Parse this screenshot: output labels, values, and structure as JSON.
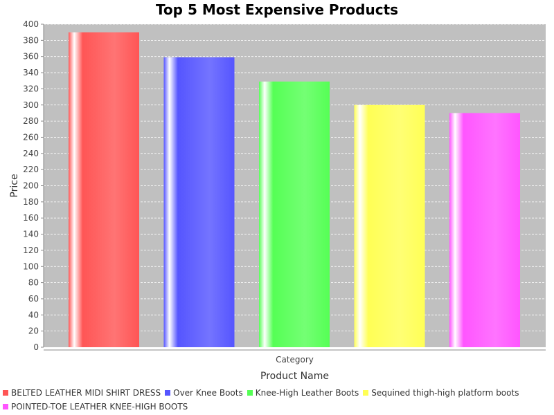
{
  "chart_data": {
    "type": "bar",
    "title": "Top 5 Most Expensive Products",
    "xlabel": "Product Name",
    "ylabel": "Price",
    "categories": [
      "Category"
    ],
    "ylim": [
      0,
      400
    ],
    "ytick_step": 20,
    "grid": true,
    "legend_position": "bottom",
    "background": "#c0c0c0",
    "series": [
      {
        "name": "BELTED LEATHER MIDI SHIRT DRESS",
        "values": [
          390
        ],
        "color": "#ff5555"
      },
      {
        "name": "Over Knee Boots",
        "values": [
          359
        ],
        "color": "#5555ff"
      },
      {
        "name": "Knee-High Leather Boots",
        "values": [
          329
        ],
        "color": "#55ff55"
      },
      {
        "name": "Sequined thigh-high platform boots",
        "values": [
          300
        ],
        "color": "#ffff55"
      },
      {
        "name": "POINTED-TOE LEATHER KNEE-HIGH BOOTS",
        "values": [
          290
        ],
        "color": "#ff55ff"
      }
    ]
  }
}
